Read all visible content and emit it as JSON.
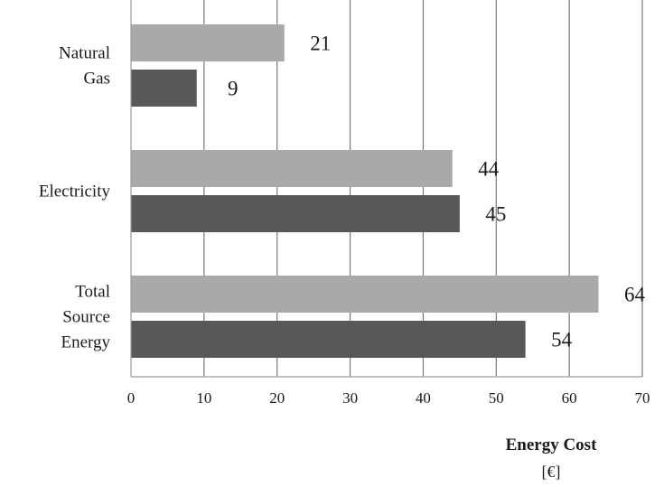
{
  "chart_data": {
    "type": "bar",
    "orientation": "horizontal",
    "categories": [
      [
        "Natural",
        "Gas"
      ],
      [
        "Electricity"
      ],
      [
        "Total",
        "Source",
        "Energy"
      ]
    ],
    "series": [
      {
        "color": "#a9a9a9",
        "values": [
          21,
          44,
          64
        ]
      },
      {
        "color": "#585858",
        "values": [
          9,
          45,
          54
        ]
      }
    ],
    "x_ticks": [
      "0",
      "10",
      "20",
      "30",
      "40",
      "50",
      "60",
      "70"
    ],
    "xlim": [
      0,
      70
    ],
    "xlabel": "Energy Cost",
    "xunit": "[€]",
    "grid": "vertical",
    "legend": "none"
  }
}
